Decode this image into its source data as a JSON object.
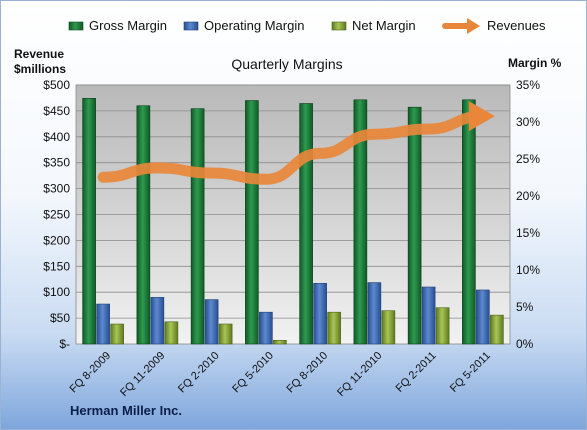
{
  "chart_data": {
    "type": "bar",
    "title": "Quarterly Margins",
    "left_axis_label_line1": "Revenue",
    "left_axis_label_line2": "$millions",
    "right_axis_label": "Margin %",
    "footer": "Herman Miller Inc.",
    "categories": [
      "FQ 8-2009",
      "FQ 11-2009",
      "FQ 2-2010",
      "FQ 5-2010",
      "FQ 8-2010",
      "FQ 11-2010",
      "FQ 2-2011",
      "FQ 5-2011"
    ],
    "left_ylim": [
      0,
      500
    ],
    "left_ticks": [
      0,
      50,
      100,
      150,
      200,
      250,
      300,
      350,
      400,
      450,
      500
    ],
    "left_tick_labels": [
      "$-",
      "$50",
      "$100",
      "$150",
      "$200",
      "$250",
      "$300",
      "$350",
      "$400",
      "$450",
      "$500"
    ],
    "right_ylim": [
      0,
      35
    ],
    "right_ticks": [
      0,
      5,
      10,
      15,
      20,
      25,
      30,
      35
    ],
    "right_tick_labels": [
      "0%",
      "5%",
      "10%",
      "15%",
      "20%",
      "25%",
      "30%",
      "35%"
    ],
    "series": [
      {
        "name": "Gross Margin",
        "axis": "right",
        "kind": "bar",
        "color": "#1e7a3a",
        "values": [
          33.2,
          32.2,
          31.8,
          32.9,
          32.5,
          33.0,
          32.0,
          33.0
        ]
      },
      {
        "name": "Operating Margin",
        "axis": "right",
        "kind": "bar",
        "color": "#3f6db8",
        "values": [
          5.4,
          6.3,
          6.0,
          4.3,
          8.2,
          8.3,
          7.7,
          7.3
        ]
      },
      {
        "name": "Net Margin",
        "axis": "right",
        "kind": "bar",
        "color": "#8cab3a",
        "values": [
          2.7,
          3.0,
          2.7,
          0.5,
          4.3,
          4.5,
          4.9,
          3.9
        ]
      },
      {
        "name": "Revenues",
        "axis": "left",
        "kind": "line",
        "color": "#e8873a",
        "values": [
          322,
          340,
          330,
          318,
          368,
          405,
          415,
          440
        ]
      }
    ],
    "grid": true,
    "legend_position": "top"
  }
}
